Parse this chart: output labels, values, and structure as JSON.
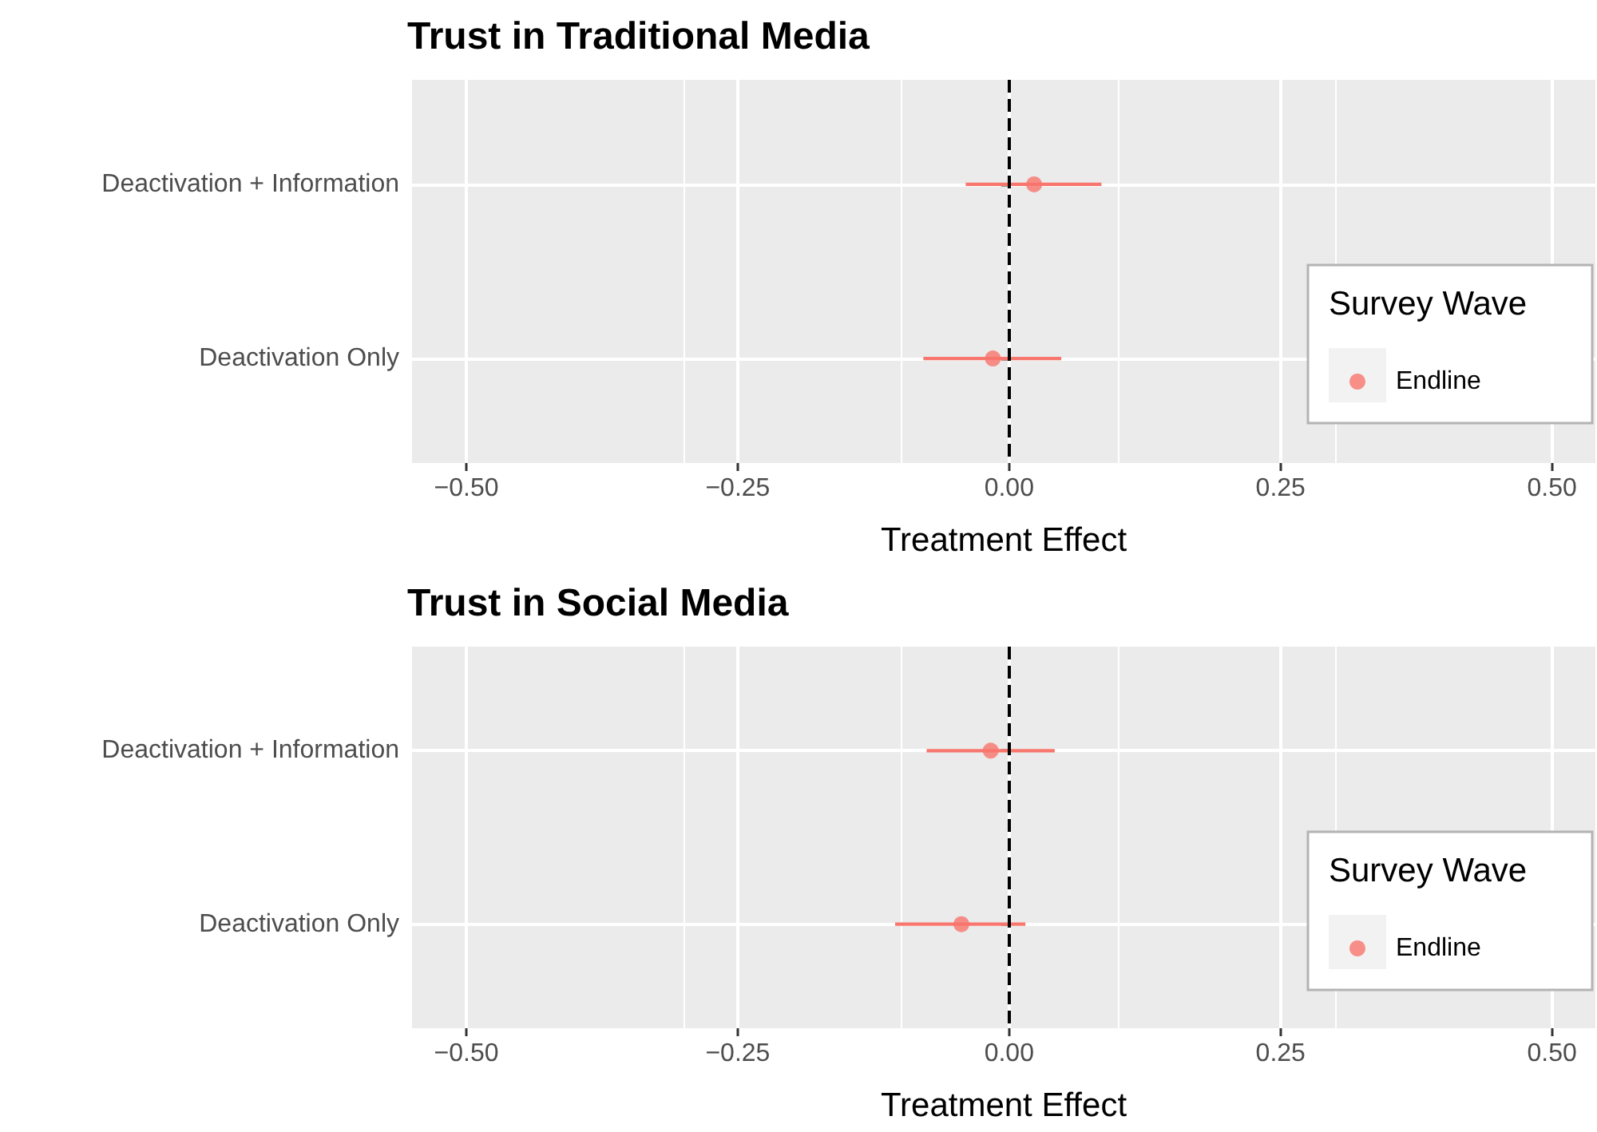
{
  "chart_data": [
    {
      "type": "scatter",
      "title": "Trust in Traditional Media",
      "xlabel": "Treatment Effect",
      "legend_title": "Survey Wave",
      "orientation": "horizontal",
      "categories": [
        "Deactivation + Information",
        "Deactivation Only"
      ],
      "series": [
        {
          "name": "Endline",
          "color": "#f8766d",
          "values": [
            0.023,
            -0.015
          ],
          "errors": [
            [
              -0.04,
              0.085
            ],
            [
              -0.079,
              0.048
            ]
          ]
        }
      ],
      "xlim": [
        -0.55,
        0.54
      ],
      "xticks": [
        {
          "value": -0.5,
          "label": "−0.50"
        },
        {
          "value": -0.25,
          "label": "−0.25"
        },
        {
          "value": 0,
          "label": "0.00"
        },
        {
          "value": 0.25,
          "label": "0.25"
        },
        {
          "value": 0.5,
          "label": "0.50"
        }
      ],
      "ref_lines": [
        {
          "axis": "x",
          "value": 0,
          "color": "#000000",
          "line_style": "dashed"
        }
      ],
      "grid": true,
      "legend": "right",
      "marker": "circle"
    },
    {
      "type": "scatter",
      "title": "Trust in Social Media",
      "xlabel": "Treatment Effect",
      "legend_title": "Survey Wave",
      "orientation": "horizontal",
      "categories": [
        "Deactivation + Information",
        "Deactivation Only"
      ],
      "series": [
        {
          "name": "Endline",
          "color": "#f8766d",
          "values": [
            -0.017,
            -0.044
          ],
          "errors": [
            [
              -0.076,
              0.042
            ],
            [
              -0.105,
              0.015
            ]
          ]
        }
      ],
      "xlim": [
        -0.55,
        0.54
      ],
      "xticks": [
        {
          "value": -0.5,
          "label": "−0.50"
        },
        {
          "value": -0.25,
          "label": "−0.25"
        },
        {
          "value": 0,
          "label": "0.00"
        },
        {
          "value": 0.25,
          "label": "0.25"
        },
        {
          "value": 0.5,
          "label": "0.50"
        }
      ],
      "ref_lines": [
        {
          "axis": "x",
          "value": 0,
          "color": "#000000",
          "line_style": "dashed"
        }
      ],
      "grid": true,
      "legend": "right",
      "marker": "circle"
    }
  ]
}
